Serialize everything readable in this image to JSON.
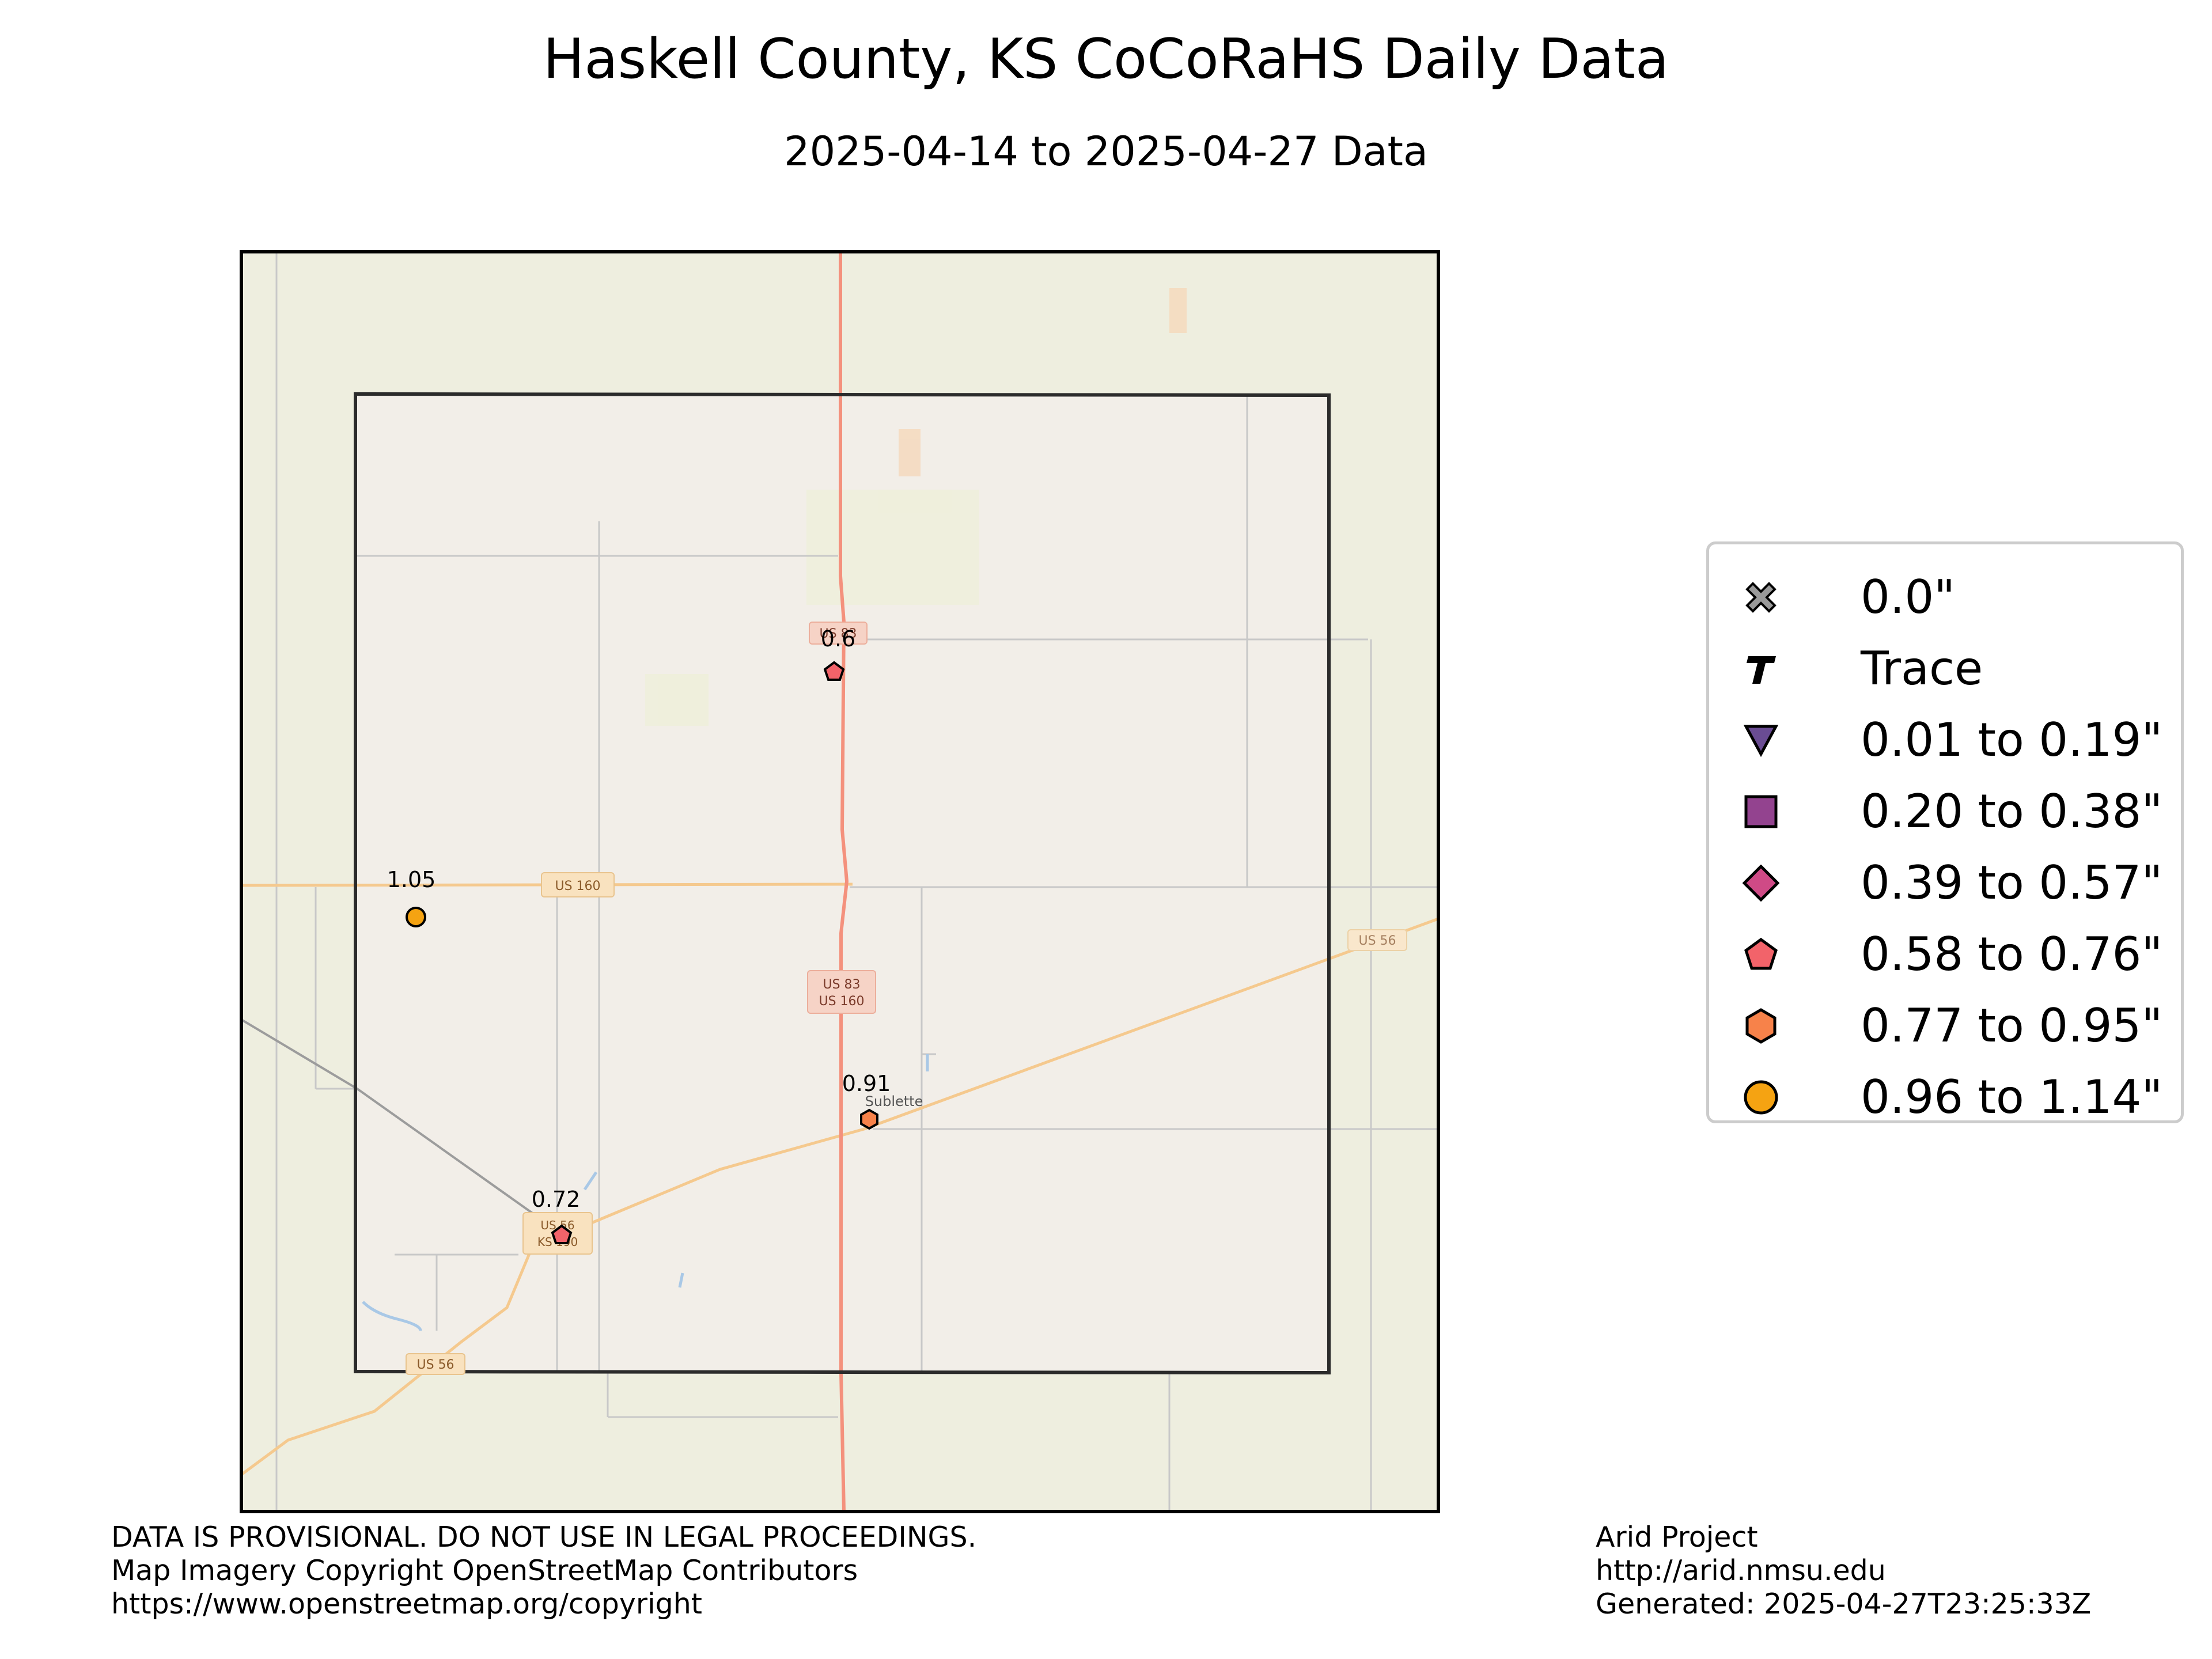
{
  "header": {
    "title": "Haskell County, KS CoCoRaHS Daily Data",
    "subtitle": "2025-04-14 to 2025-04-27 Data"
  },
  "map": {
    "road_labels": [
      "US 160",
      "US 83",
      "US 160",
      "US 56",
      "US 56",
      "US 56",
      "KS 190",
      "US 83"
    ],
    "place_labels": [
      "Sublette"
    ],
    "colors": {
      "background": "#eeeedf",
      "county_fill": "#f2eee8",
      "county_border": "#2b2b2b",
      "highway": "#f4917d",
      "secondary_road": "#f5c98e",
      "minor_road": "#c8c8c8"
    }
  },
  "stations": [
    {
      "value": "0.6",
      "category": "0.58 to 0.76\"",
      "symbol": "pentagon",
      "color": "#f2636a"
    },
    {
      "value": "1.05",
      "category": "0.96 to 1.14\"",
      "symbol": "circle",
      "color": "#f5a312"
    },
    {
      "value": "0.91",
      "category": "0.77 to 0.95\"",
      "symbol": "hexagon",
      "color": "#f7824a"
    },
    {
      "value": "0.72",
      "category": "0.58 to 0.76\"",
      "symbol": "pentagon",
      "color": "#f2636a"
    }
  ],
  "legend": {
    "items": [
      {
        "label": "0.0\"",
        "icon": "x-marker-icon",
        "color": "#9a9a9a"
      },
      {
        "label": "Trace",
        "icon": "t-marker-icon",
        "color": "#000000"
      },
      {
        "label": "0.01 to 0.19\"",
        "icon": "triangle-down-icon",
        "color": "#6a4c93"
      },
      {
        "label": "0.20 to 0.38\"",
        "icon": "square-icon",
        "color": "#93438f"
      },
      {
        "label": "0.39 to 0.57\"",
        "icon": "diamond-icon",
        "color": "#cf4a86"
      },
      {
        "label": "0.58 to 0.76\"",
        "icon": "pentagon-icon",
        "color": "#f2636a"
      },
      {
        "label": "0.77 to 0.95\"",
        "icon": "hexagon-icon",
        "color": "#f7824a"
      },
      {
        "label": "0.96 to 1.14\"",
        "icon": "circle-icon",
        "color": "#f5a312"
      }
    ]
  },
  "footer": {
    "left": [
      "DATA IS PROVISIONAL. DO NOT USE IN LEGAL PROCEEDINGS.",
      "Map Imagery Copyright OpenStreetMap Contributors",
      "https://www.openstreetmap.org/copyright"
    ],
    "right": [
      "Arid Project",
      "http://arid.nmsu.edu",
      "Generated: 2025-04-27T23:25:33Z"
    ]
  }
}
